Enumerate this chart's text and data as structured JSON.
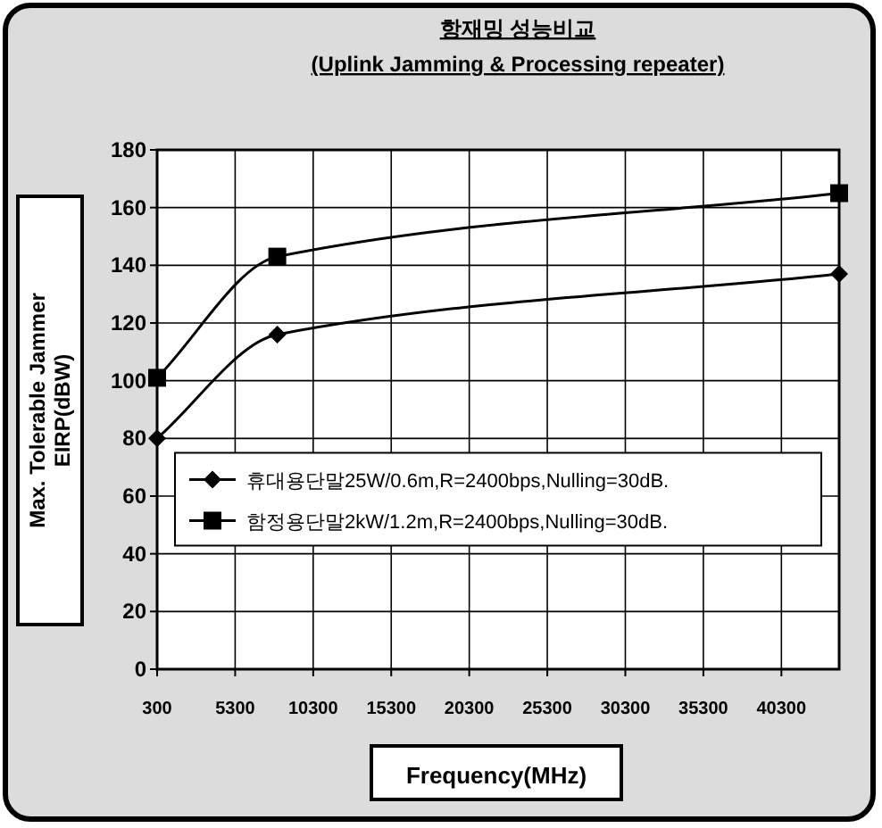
{
  "chart_data": {
    "type": "line",
    "title": "항재밍 성능비교",
    "subtitle": "(Uplink Jamming & Processing repeater)",
    "xlabel": "Frequency(MHz)",
    "ylabel": "Max. Tolerable Jammer EIRP(dBW)",
    "xlim": [
      300,
      44000
    ],
    "xticks": [
      300,
      5300,
      10300,
      15300,
      20300,
      25300,
      30300,
      35300,
      40300
    ],
    "ylim": [
      0,
      180
    ],
    "yticks": [
      0,
      20,
      40,
      60,
      80,
      100,
      120,
      140,
      160,
      180
    ],
    "grid": true,
    "legend": "bottom",
    "line_style": "solid",
    "series": [
      {
        "name": "휴대용단말25W/0.6m,R=2400bps,Nulling=30dB.",
        "color": "#000000",
        "marker": "diamond",
        "x": [
          300,
          8000,
          44000
        ],
        "values": [
          80,
          116,
          137
        ]
      },
      {
        "name": "함정용단말2kW/1.2m,R=2400bps,Nulling=30dB.",
        "color": "#000000",
        "marker": "square",
        "x": [
          300,
          8000,
          44000
        ],
        "values": [
          101,
          143,
          165
        ]
      }
    ]
  }
}
